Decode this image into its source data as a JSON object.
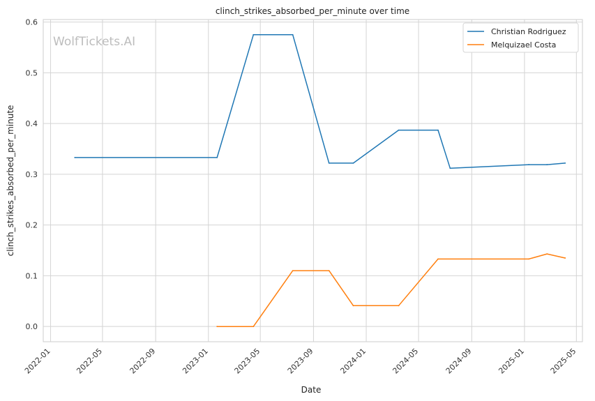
{
  "chart_data": {
    "type": "line",
    "title": "clinch_strikes_absorbed_per_minute over time",
    "xlabel": "Date",
    "ylabel": "clinch_strikes_absorbed_per_minute",
    "watermark": "WolfTickets.AI",
    "x_ticks": [
      "2022-01",
      "2022-05",
      "2022-09",
      "2023-01",
      "2023-05",
      "2023-09",
      "2024-01",
      "2024-05",
      "2024-09",
      "2025-01",
      "2025-05"
    ],
    "y_ticks": [
      "0.0",
      "0.1",
      "0.2",
      "0.3",
      "0.4",
      "0.5",
      "0.6"
    ],
    "xlim": [
      "2021-12-15",
      "2025-05-15"
    ],
    "ylim": [
      -0.03,
      0.605
    ],
    "grid": true,
    "legend_position": "top-right",
    "series": [
      {
        "name": "Christian Rodriguez",
        "color": "#1f77b4",
        "points": [
          {
            "x": "2022-02-26",
            "y": 0.333
          },
          {
            "x": "2023-01-21",
            "y": 0.333
          },
          {
            "x": "2023-04-15",
            "y": 0.575
          },
          {
            "x": "2023-07-15",
            "y": 0.575
          },
          {
            "x": "2023-10-07",
            "y": 0.322
          },
          {
            "x": "2023-12-02",
            "y": 0.322
          },
          {
            "x": "2024-03-16",
            "y": 0.387
          },
          {
            "x": "2024-06-15",
            "y": 0.387
          },
          {
            "x": "2024-07-13",
            "y": 0.312
          },
          {
            "x": "2025-01-11",
            "y": 0.319
          },
          {
            "x": "2025-02-22",
            "y": 0.319
          },
          {
            "x": "2025-04-05",
            "y": 0.322
          }
        ]
      },
      {
        "name": "Melquizael Costa",
        "color": "#ff7f0e",
        "points": [
          {
            "x": "2023-01-21",
            "y": 0.0
          },
          {
            "x": "2023-04-15",
            "y": 0.0
          },
          {
            "x": "2023-07-15",
            "y": 0.11
          },
          {
            "x": "2023-10-07",
            "y": 0.11
          },
          {
            "x": "2023-12-02",
            "y": 0.041
          },
          {
            "x": "2024-03-16",
            "y": 0.041
          },
          {
            "x": "2024-06-15",
            "y": 0.133
          },
          {
            "x": "2025-01-11",
            "y": 0.133
          },
          {
            "x": "2025-02-22",
            "y": 0.143
          },
          {
            "x": "2025-04-05",
            "y": 0.135
          }
        ]
      }
    ]
  }
}
